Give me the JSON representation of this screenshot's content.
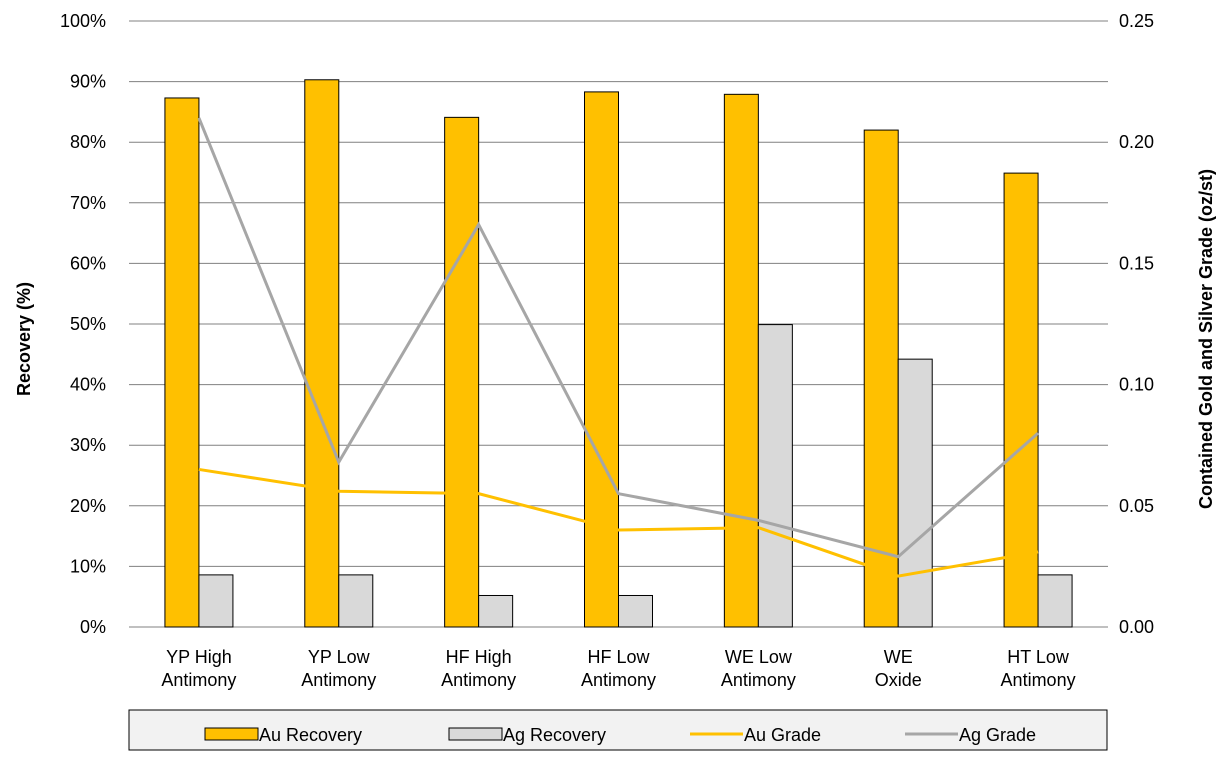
{
  "chart_data": {
    "type": "bar",
    "title": "",
    "categories": [
      [
        "YP High",
        "Antimony"
      ],
      [
        "YP Low",
        "Antimony"
      ],
      [
        "HF High",
        "Antimony"
      ],
      [
        "HF Low",
        "Antimony"
      ],
      [
        "WE Low",
        "Antimony"
      ],
      [
        "WE",
        "Oxide"
      ],
      [
        "HT Low",
        "Antimony"
      ]
    ],
    "ylabel": "Recovery (%)",
    "y2label": "Contained Gold and Silver Grade (oz/st)",
    "ylim": [
      0,
      100
    ],
    "y2lim": [
      0,
      0.25
    ],
    "yticks": [
      "0%",
      "10%",
      "20%",
      "30%",
      "40%",
      "50%",
      "60%",
      "70%",
      "80%",
      "90%",
      "100%"
    ],
    "y2ticks": [
      "0.00",
      "0.05",
      "0.10",
      "0.15",
      "0.20",
      "0.25"
    ],
    "grid": true,
    "legend_position": "bottom",
    "series": [
      {
        "name": "Au Recovery",
        "type": "bar",
        "axis": "left",
        "color": "#FFC000",
        "values": [
          87.3,
          90.3,
          84.1,
          88.3,
          87.9,
          82.0,
          74.9
        ]
      },
      {
        "name": "Ag Recovery",
        "type": "bar",
        "axis": "left",
        "color": "#D9D9D9",
        "values": [
          8.6,
          8.6,
          5.2,
          5.2,
          49.9,
          44.2,
          8.6
        ]
      },
      {
        "name": "Au Grade",
        "type": "line",
        "axis": "right",
        "color": "#FFC000",
        "values": [
          0.065,
          0.056,
          0.055,
          0.04,
          0.041,
          0.021,
          0.031
        ]
      },
      {
        "name": "Ag Grade",
        "type": "line",
        "axis": "right",
        "color": "#A6A6A6",
        "values": [
          0.21,
          0.068,
          0.166,
          0.055,
          0.044,
          0.029,
          0.08
        ]
      }
    ]
  }
}
